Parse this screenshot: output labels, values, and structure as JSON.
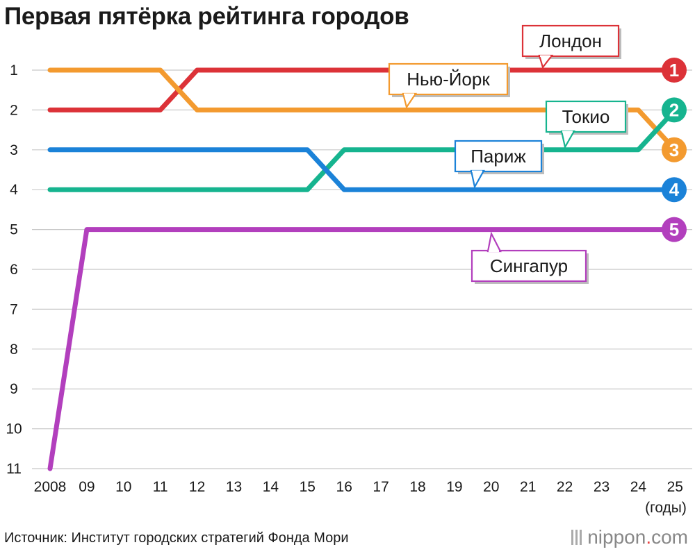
{
  "chart_data": {
    "type": "line",
    "title": "Первая пятёрка рейтинга городов",
    "x": [
      "2008",
      "09",
      "10",
      "11",
      "12",
      "13",
      "14",
      "15",
      "16",
      "17",
      "18",
      "19",
      "20",
      "21",
      "22",
      "23",
      "24",
      "25"
    ],
    "xunit": "(годы)",
    "y_ticks": [
      "1",
      "2",
      "3",
      "4",
      "5",
      "6",
      "7",
      "8",
      "9",
      "10",
      "11"
    ],
    "ylim": [
      1,
      11
    ],
    "y_inverted": true,
    "grid": true,
    "series": [
      {
        "name": "Лондон",
        "color": "#dc3238",
        "values": [
          2,
          2,
          2,
          2,
          1,
          1,
          1,
          1,
          1,
          1,
          1,
          1,
          1,
          1,
          1,
          1,
          1,
          1
        ],
        "final_rank": "1"
      },
      {
        "name": "Нью-Йорк",
        "color": "#f39a2f",
        "values": [
          1,
          1,
          1,
          1,
          2,
          2,
          2,
          2,
          2,
          2,
          2,
          2,
          2,
          2,
          2,
          2,
          2,
          3
        ],
        "final_rank": "3"
      },
      {
        "name": "Токио",
        "color": "#16b48f",
        "values": [
          4,
          4,
          4,
          4,
          4,
          4,
          4,
          4,
          3,
          3,
          3,
          3,
          3,
          3,
          3,
          3,
          3,
          2
        ],
        "final_rank": "2"
      },
      {
        "name": "Париж",
        "color": "#1b82d8",
        "values": [
          3,
          3,
          3,
          3,
          3,
          3,
          3,
          3,
          4,
          4,
          4,
          4,
          4,
          4,
          4,
          4,
          4,
          4
        ],
        "final_rank": "4"
      },
      {
        "name": "Сингапур",
        "color": "#b23fbd",
        "values": [
          11,
          5,
          5,
          5,
          5,
          5,
          5,
          5,
          5,
          5,
          5,
          5,
          5,
          5,
          5,
          5,
          5,
          5
        ],
        "final_rank": "5"
      }
    ],
    "source": "Источник: Институт городских стратегий Фонда Мори"
  },
  "logo": {
    "name": "nippon",
    "dot": ".",
    "suffix": "com"
  }
}
